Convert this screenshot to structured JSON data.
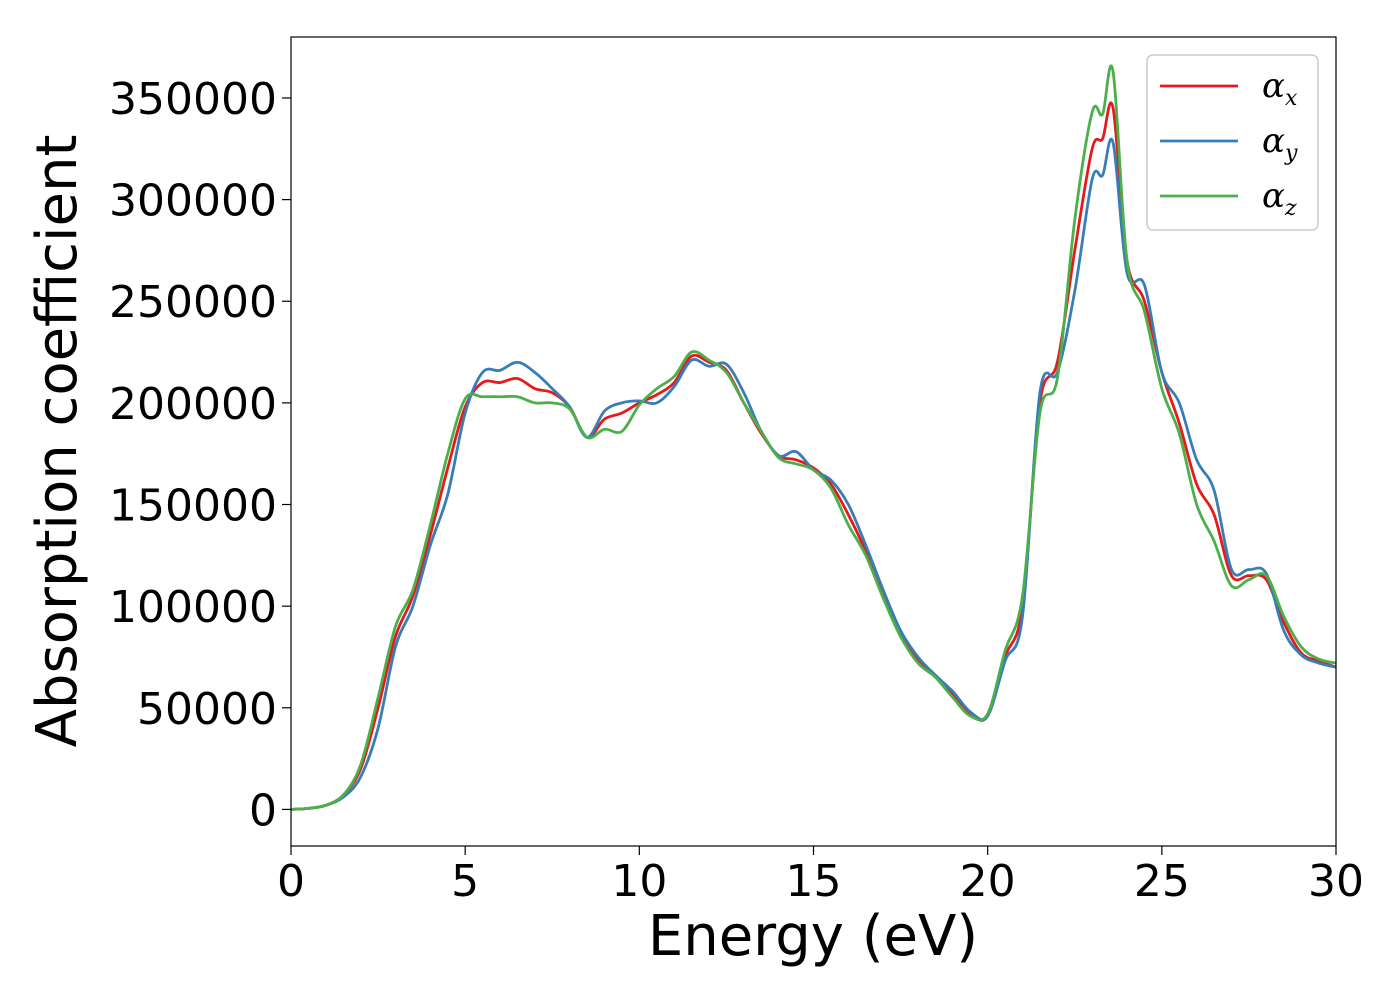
{
  "chart_data": {
    "type": "line",
    "title": "",
    "xlabel": "Energy (eV)",
    "ylabel": "Absorption coefficient",
    "xlim": [
      0,
      30
    ],
    "ylim": [
      -18000,
      380000
    ],
    "xticks": [
      0,
      5,
      10,
      15,
      20,
      25,
      30
    ],
    "xtick_labels": [
      "0",
      "5",
      "10",
      "15",
      "20",
      "25",
      "30"
    ],
    "yticks": [
      0,
      50000,
      100000,
      150000,
      200000,
      250000,
      300000,
      350000
    ],
    "ytick_labels": [
      "0",
      "50000",
      "100000",
      "150000",
      "200000",
      "250000",
      "300000",
      "350000"
    ],
    "grid": false,
    "legend_position": "top-right",
    "series": [
      {
        "name": "α",
        "subscript": "x",
        "color": "#e41a1c",
        "x": [
          0,
          0.5,
          1,
          1.5,
          2,
          2.5,
          3,
          3.5,
          4,
          4.5,
          5,
          5.5,
          6,
          6.5,
          7,
          7.5,
          8,
          8.5,
          9,
          9.5,
          10,
          10.5,
          11,
          11.5,
          12,
          12.5,
          13,
          13.5,
          14,
          14.5,
          15,
          15.5,
          16,
          16.5,
          17,
          17.5,
          18,
          18.5,
          19,
          19.5,
          20,
          20.5,
          21,
          21.5,
          22,
          22.5,
          23,
          23.3,
          23.6,
          24,
          24.5,
          25,
          25.5,
          26,
          26.5,
          27,
          27.5,
          28,
          28.5,
          29,
          29.5,
          30
        ],
        "y": [
          0,
          500,
          2000,
          7000,
          20000,
          50000,
          85000,
          105000,
          135000,
          168000,
          198000,
          210000,
          210000,
          212000,
          207000,
          205000,
          198000,
          183000,
          192000,
          195000,
          200000,
          204000,
          210000,
          223000,
          220000,
          216000,
          200000,
          185000,
          174000,
          172000,
          168000,
          160000,
          145000,
          127000,
          106000,
          86000,
          73000,
          66000,
          57000,
          47000,
          46000,
          75000,
          100000,
          200000,
          220000,
          275000,
          325000,
          330000,
          345000,
          270000,
          250000,
          215000,
          190000,
          160000,
          145000,
          115000,
          115000,
          113000,
          92000,
          77000,
          73000,
          70000
        ]
      },
      {
        "name": "α",
        "subscript": "y",
        "color": "#377eb8",
        "x": [
          0,
          0.5,
          1,
          1.5,
          2,
          2.5,
          3,
          3.5,
          4,
          4.5,
          5,
          5.5,
          6,
          6.5,
          7,
          7.5,
          8,
          8.5,
          9,
          9.5,
          10,
          10.5,
          11,
          11.5,
          12,
          12.5,
          13,
          13.5,
          14,
          14.5,
          15,
          15.5,
          16,
          16.5,
          17,
          17.5,
          18,
          18.5,
          19,
          19.5,
          20,
          20.5,
          21,
          21.5,
          22,
          22.5,
          23,
          23.3,
          23.6,
          24,
          24.5,
          25,
          25.5,
          26,
          26.5,
          27,
          27.5,
          28,
          28.5,
          29,
          29.5,
          30
        ],
        "y": [
          0,
          500,
          2000,
          6000,
          16000,
          40000,
          80000,
          100000,
          130000,
          155000,
          195000,
          215000,
          216000,
          220000,
          215000,
          207000,
          198000,
          183000,
          196000,
          200000,
          201000,
          200000,
          208000,
          221000,
          218000,
          219000,
          205000,
          186000,
          174000,
          176000,
          167000,
          162000,
          150000,
          130000,
          108000,
          88000,
          75000,
          66000,
          58000,
          48000,
          46000,
          73000,
          95000,
          205000,
          215000,
          255000,
          310000,
          312000,
          328000,
          264000,
          258000,
          215000,
          200000,
          172000,
          157000,
          118000,
          118000,
          116000,
          88000,
          76000,
          72000,
          70000
        ]
      },
      {
        "name": "α",
        "subscript": "z",
        "color": "#4daf4a",
        "x": [
          0,
          0.5,
          1,
          1.5,
          2,
          2.5,
          3,
          3.5,
          4,
          4.5,
          5,
          5.5,
          6,
          6.5,
          7,
          7.5,
          8,
          8.5,
          9,
          9.5,
          10,
          10.5,
          11,
          11.5,
          12,
          12.5,
          13,
          13.5,
          14,
          14.5,
          15,
          15.5,
          16,
          16.5,
          17,
          17.5,
          18,
          18.5,
          19,
          19.5,
          20,
          20.5,
          21,
          21.5,
          22,
          22.5,
          23,
          23.3,
          23.6,
          24,
          24.5,
          25,
          25.5,
          26,
          26.5,
          27,
          27.5,
          28,
          28.5,
          29,
          29.5,
          30
        ],
        "y": [
          0,
          500,
          2000,
          7000,
          22000,
          55000,
          90000,
          108000,
          140000,
          175000,
          202000,
          203000,
          203000,
          203000,
          200000,
          200000,
          197000,
          183000,
          187000,
          186000,
          199000,
          207000,
          213000,
          225000,
          221000,
          215000,
          200000,
          186000,
          173000,
          170000,
          167000,
          158000,
          140000,
          125000,
          104000,
          85000,
          72000,
          65000,
          55000,
          46000,
          47000,
          78000,
          105000,
          195000,
          212000,
          290000,
          343000,
          342000,
          363000,
          270000,
          245000,
          207000,
          185000,
          150000,
          132000,
          110000,
          113000,
          115000,
          95000,
          80000,
          74000,
          72000
        ]
      }
    ]
  }
}
